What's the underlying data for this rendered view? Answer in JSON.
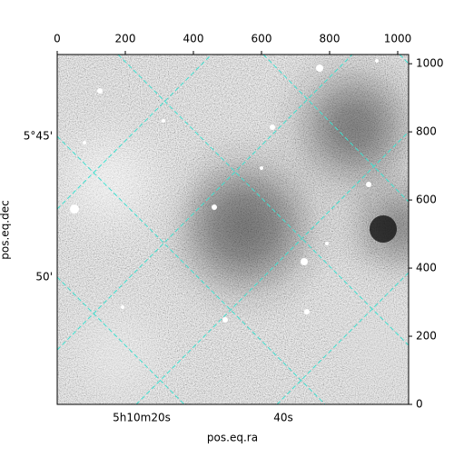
{
  "chart_data": {
    "type": "image",
    "xlabel": "pos.eq.ra",
    "ylabel": "pos.eq.dec",
    "xlim": [
      0,
      1032
    ],
    "ylim": [
      0,
      1027
    ],
    "xticks": [
      0,
      200,
      400,
      600,
      800,
      1000
    ],
    "yticks": [
      0,
      200,
      400,
      600,
      800,
      1000
    ],
    "ra_tick_labels": [
      "5h10m20s",
      "40s"
    ],
    "dec_tick_labels": [
      "5°45'",
      "50'"
    ],
    "grid_color": "#40e0d0"
  }
}
